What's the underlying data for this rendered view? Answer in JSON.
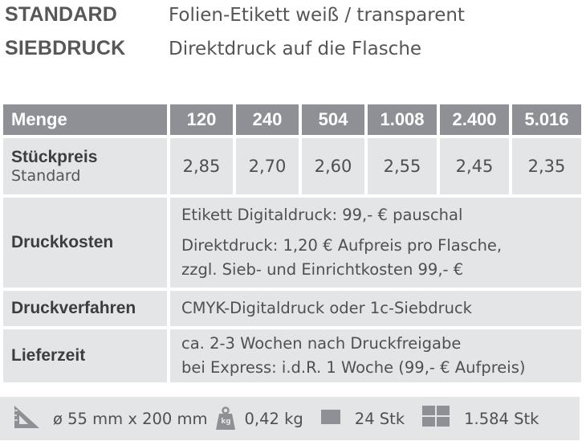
{
  "header": [
    {
      "key": "STANDARD",
      "value": "Folien-Etikett weiß / transparent"
    },
    {
      "key": "SIEBDRUCK",
      "value": "Direktdruck auf die Flasche"
    }
  ],
  "table": {
    "head_label": "Menge",
    "quantities": [
      "120",
      "240",
      "504",
      "1.008",
      "2.400",
      "5.016"
    ],
    "price_row": {
      "label": "Stückpreis",
      "sublabel": "Standard",
      "values": [
        "2,85",
        "2,70",
        "2,60",
        "2,55",
        "2,45",
        "2,35"
      ]
    },
    "druckkosten": {
      "label": "Druckkosten",
      "line1": "Etikett Digitaldruck: 99,- € pauschal",
      "line2": "Direktdruck: 1,20 € Aufpreis pro Flasche,",
      "line3": "zzgl. Sieb- und Einrichtkosten 99,- €"
    },
    "druckverfahren": {
      "label": "Druckverfahren",
      "value": "CMYK-Digitaldruck oder 1c-Siebdruck"
    },
    "lieferzeit": {
      "label": "Lieferzeit",
      "line1": "ca. 2-3 Wochen nach Druckfreigabe",
      "line2": "bei Express:  i.d.R. 1 Woche (99,- € Aufpreis)"
    }
  },
  "footer": {
    "dimensions": "ø 55 mm x 200 mm",
    "weight": "0,42 kg",
    "weight_icon_text": "kg",
    "carton": "24 Stk",
    "pallet": "1.584 Stk",
    "icons": [
      "ruler-triangle-icon",
      "weight-icon",
      "carton-icon",
      "pallet-icon"
    ]
  }
}
